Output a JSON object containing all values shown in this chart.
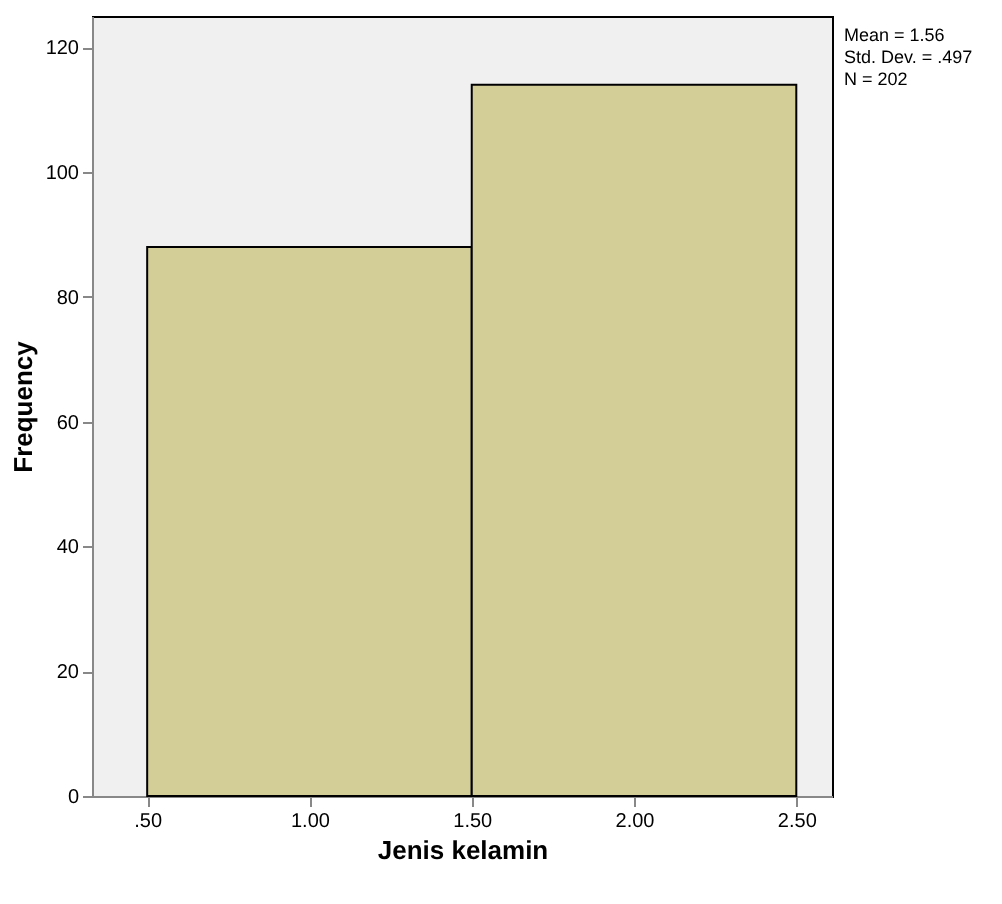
{
  "chart_data": {
    "type": "histogram",
    "xlabel": "Jenis  kelamin",
    "ylabel": "Frequency",
    "bins": [
      0.5,
      1.5,
      2.5
    ],
    "values": [
      88,
      114
    ],
    "color": "#d3ce97",
    "xlim": [
      0.33,
      2.61
    ],
    "ylim": [
      0,
      125
    ],
    "xticks": [
      {
        "value": 0.5,
        "label": ".50"
      },
      {
        "value": 1.0,
        "label": "1.00"
      },
      {
        "value": 1.5,
        "label": "1.50"
      },
      {
        "value": 2.0,
        "label": "2.00"
      },
      {
        "value": 2.5,
        "label": "2.50"
      }
    ],
    "yticks": [
      0,
      20,
      40,
      60,
      80,
      100,
      120
    ],
    "annotations": [
      "Mean = 1.56",
      "Std. Dev. = .497",
      "N = 202"
    ],
    "grid": false
  }
}
